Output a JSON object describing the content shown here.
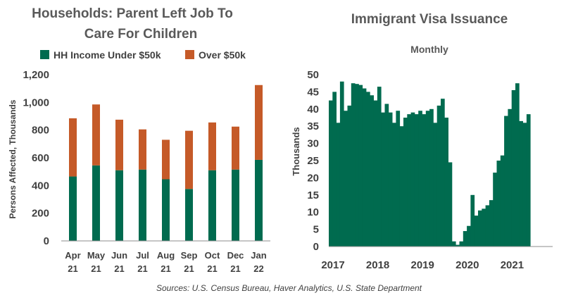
{
  "colors": {
    "green": "#006B4F",
    "orange": "#C55A28",
    "text": "#404040",
    "axis": "#8C8C8C"
  },
  "source": "Sources: U.S. Census Bureau, Haver Analytics, U.S. State Department",
  "chart_data": [
    {
      "type": "bar",
      "stacked": true,
      "title_lines": [
        "Households: Parent Left Job To",
        "Care For Children"
      ],
      "ylabel": "Persons Affected, Thousands",
      "ylim": [
        0,
        1200
      ],
      "yticks": [
        0,
        200,
        400,
        600,
        800,
        1000,
        1200
      ],
      "ytick_labels": [
        "0",
        "200",
        "400",
        "600",
        "800",
        "1,000",
        "1,200"
      ],
      "categories": [
        [
          "Apr",
          "21"
        ],
        [
          "May",
          "21"
        ],
        [
          "Jun",
          "21"
        ],
        [
          "Jul",
          "21"
        ],
        [
          "Aug",
          "21"
        ],
        [
          "Sep",
          "21"
        ],
        [
          "Oct",
          "21"
        ],
        [
          "Dec",
          "21"
        ],
        [
          "Jan",
          "22"
        ]
      ],
      "series": [
        {
          "name": "HH Income Under $50k",
          "color": "#006B4F",
          "values": [
            465,
            545,
            510,
            515,
            445,
            375,
            510,
            515,
            585
          ]
        },
        {
          "name": "Over $50k",
          "color": "#C55A28",
          "values": [
            420,
            440,
            365,
            290,
            285,
            420,
            345,
            310,
            540
          ]
        }
      ],
      "legend_position": "top"
    },
    {
      "type": "area",
      "title": "Immigrant Visa Issuance",
      "subtitle": "Monthly",
      "ylabel": "Thousands",
      "ylim": [
        0,
        50
      ],
      "yticks": [
        0,
        5,
        10,
        15,
        20,
        25,
        30,
        35,
        40,
        45,
        50
      ],
      "x_start": "2017-01",
      "xtick_labels": [
        "2017",
        "2018",
        "2019",
        "2020",
        "2021"
      ],
      "color": "#006B4F",
      "values": [
        42.5,
        45,
        36,
        48,
        39.5,
        41,
        47.5,
        47.3,
        47,
        46,
        45,
        44,
        42.5,
        46.5,
        39,
        41.5,
        39,
        36,
        39.5,
        35,
        37.5,
        38.5,
        39,
        38.5,
        39.5,
        38.5,
        39.5,
        40,
        36,
        41,
        43,
        37.5,
        24.5,
        1.5,
        0.5,
        1.5,
        4.5,
        6,
        15,
        9,
        10.5,
        11,
        12,
        13.5,
        21.5,
        25,
        26.5,
        38,
        40,
        45.5,
        47.5,
        36.5,
        36,
        38.5
      ]
    }
  ]
}
